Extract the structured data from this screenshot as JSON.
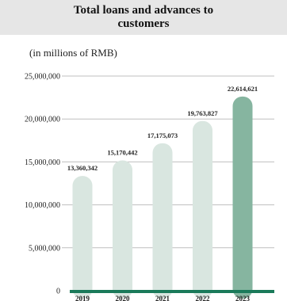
{
  "header": {
    "title": "Total loans and advances to customers"
  },
  "unit_label": "(in millions of RMB)",
  "chart_data": {
    "type": "bar",
    "title": "Total loans and advances to customers",
    "subtitle": "(in millions of RMB)",
    "categories": [
      "2019",
      "2020",
      "2021",
      "2022",
      "2023"
    ],
    "values": [
      13360342,
      15170442,
      17175073,
      19763827,
      22614621
    ],
    "value_labels": [
      "13,360,342",
      "15,170,442",
      "17,175,073",
      "19,763,827",
      "22,614,621"
    ],
    "ylim": [
      0,
      25000000
    ],
    "yticks": [
      0,
      5000000,
      10000000,
      15000000,
      20000000,
      25000000
    ],
    "ytick_labels": [
      "0",
      "5,000,000",
      "10,000,000",
      "15,000,000",
      "20,000,000",
      "25,000,000"
    ],
    "grid": true,
    "colors": {
      "bar": "#d9e6e0",
      "highlight_bar": "#86b5a0",
      "baseline": "#1a7a5a",
      "grid": "#bfbfbf"
    }
  }
}
